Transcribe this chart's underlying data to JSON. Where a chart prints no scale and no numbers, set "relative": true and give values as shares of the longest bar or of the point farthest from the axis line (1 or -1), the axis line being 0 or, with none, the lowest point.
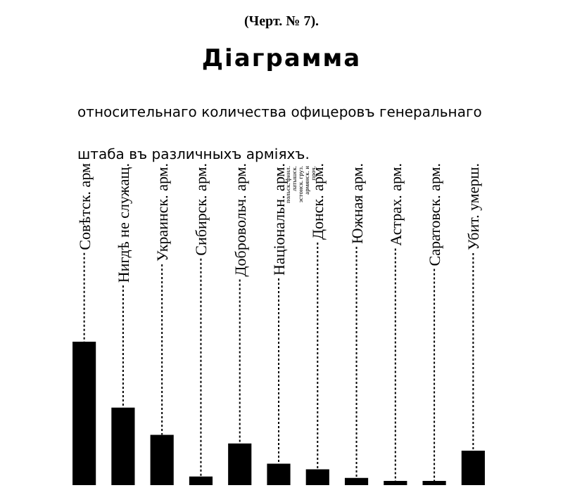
{
  "chart_data": {
    "type": "bar",
    "title": "Діаграмма",
    "subtitle": "относительнаго количества офицеровъ генеральнаго штаба въ различныхъ арміяхъ.",
    "categories": [
      "Совѣтск. арм",
      "Нигдѣ не служащ.",
      "Украинск. арм.",
      "Сибирск. арм.",
      "Добровольч. арм.",
      "Національн. арм.\nпольск. финл. латышск. эстонск. груз. армянск. и проч.",
      "Донск. арм.",
      "Южная арм.",
      "Астрах. арм.",
      "Саратовск. арм.",
      "Убит. умерш."
    ],
    "values": [
      1,
      0.54,
      0.35,
      0.06,
      0.29,
      0.15,
      0.11,
      0.05,
      0.03,
      0.03,
      0.24
    ],
    "color": "#000000",
    "relative": true,
    "grid": "x",
    "annotations": [
      "(Черт. № 7)."
    ]
  }
}
